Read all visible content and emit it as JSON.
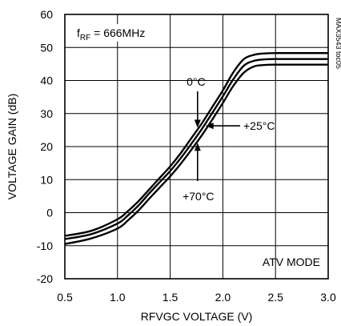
{
  "chart_data": {
    "type": "line",
    "xlabel": "RFVGC VOLTAGE (V)",
    "ylabel": "VOLTAGE GAIN (dB)",
    "xlim": [
      0.5,
      3.0
    ],
    "ylim": [
      -20,
      60
    ],
    "xticks": [
      0.5,
      1.0,
      1.5,
      2.0,
      2.5,
      3.0
    ],
    "xtick_labels": [
      "0.5",
      "1.0",
      "1.5",
      "2.0",
      "2.5",
      "3.0"
    ],
    "yticks": [
      -20,
      -10,
      0,
      10,
      20,
      30,
      40,
      50,
      60
    ],
    "ytick_labels": [
      "-20",
      "-10",
      "0",
      "10",
      "20",
      "30",
      "40",
      "50",
      "60"
    ],
    "grid": true,
    "series": [
      {
        "name": "0°C",
        "x": [
          0.5,
          0.75,
          1.0,
          1.1,
          1.2,
          1.3,
          1.4,
          1.5,
          1.6,
          1.7,
          1.8,
          1.9,
          2.0,
          2.1,
          2.2,
          2.3,
          2.4,
          2.5,
          2.75,
          3.0
        ],
        "y": [
          -7,
          -5.5,
          -2,
          0.5,
          3.5,
          7,
          10.5,
          14,
          18,
          22.5,
          27,
          32,
          37,
          42.5,
          46.5,
          47.8,
          48.2,
          48.3,
          48.3,
          48.3
        ]
      },
      {
        "name": "+25°C",
        "x": [
          0.5,
          0.75,
          1.0,
          1.1,
          1.2,
          1.3,
          1.4,
          1.5,
          1.6,
          1.7,
          1.8,
          1.9,
          2.0,
          2.1,
          2.2,
          2.3,
          2.4,
          2.5,
          2.75,
          3.0
        ],
        "y": [
          -8,
          -6.5,
          -3.3,
          -0.8,
          2.2,
          5.8,
          9.2,
          12.6,
          16.5,
          20.8,
          25.3,
          30.2,
          35.2,
          40.4,
          44.5,
          46,
          46.4,
          46.5,
          46.5,
          46.5
        ]
      },
      {
        "name": "+70°C",
        "x": [
          0.5,
          0.75,
          1.0,
          1.1,
          1.2,
          1.3,
          1.4,
          1.5,
          1.6,
          1.7,
          1.8,
          1.9,
          2.0,
          2.1,
          2.2,
          2.3,
          2.4,
          2.5,
          2.75,
          3.0
        ],
        "y": [
          -9.5,
          -7.8,
          -4.8,
          -2.3,
          0.7,
          4.2,
          7.6,
          11,
          14.8,
          19,
          23.4,
          28.2,
          33.2,
          38.4,
          42.4,
          44.3,
          44.7,
          44.8,
          44.8,
          44.8
        ]
      }
    ],
    "annotations": {
      "condition": {
        "prefix": "f",
        "subscript": "RF",
        "suffix": " = 666MHz"
      },
      "mode": "ATV MODE",
      "part_code": "MAX3543 toc05",
      "labels": [
        {
          "text": "0°C",
          "series": 0,
          "at_x": 1.76
        },
        {
          "text": "+25°C",
          "series": 1,
          "at_x": 1.82
        },
        {
          "text": "+70°C",
          "series": 2,
          "at_x": 1.76
        }
      ]
    }
  }
}
